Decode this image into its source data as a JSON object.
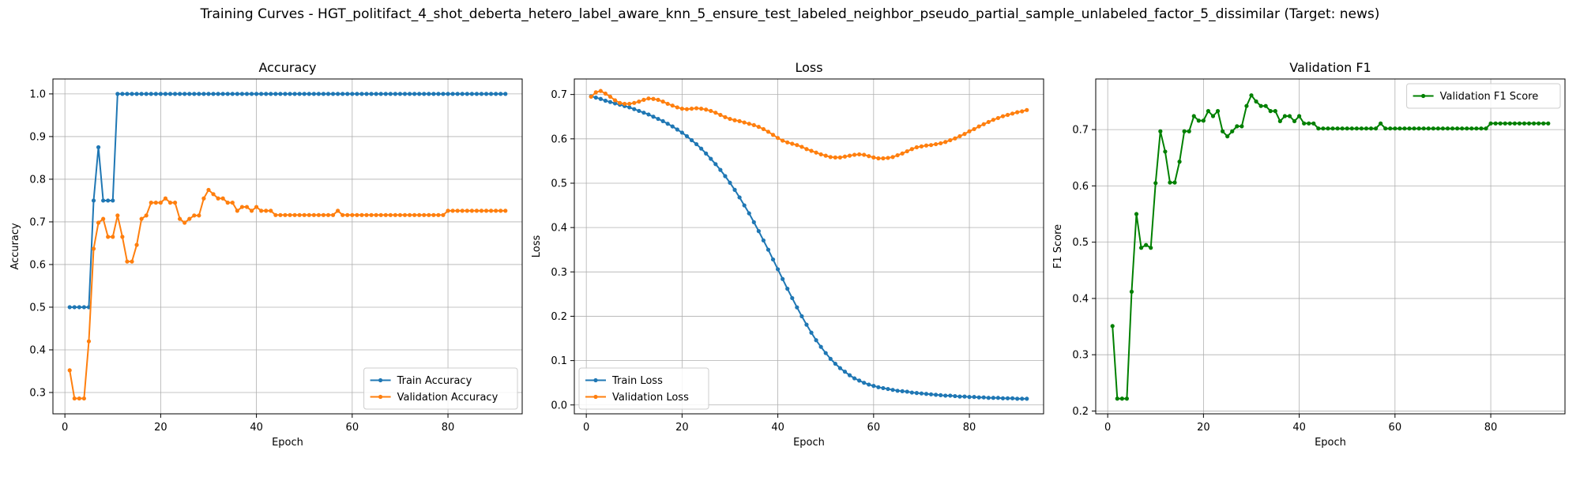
{
  "suptitle": "Training Curves - HGT_politifact_4_shot_deberta_hetero_label_aware_knn_5_ensure_test_labeled_neighbor_pseudo_partial_sample_unlabeled_factor_5_dissimilar (Target: news)",
  "chart_data": [
    {
      "type": "line",
      "title": "Accuracy",
      "xlabel": "Epoch",
      "ylabel": "Accuracy",
      "xlim": [
        -2.5,
        95.5
      ],
      "ylim": [
        0.25,
        1.035
      ],
      "xticks": [
        0,
        20,
        40,
        60,
        80
      ],
      "yticks": [
        0.3,
        0.4,
        0.5,
        0.6,
        0.7,
        0.8,
        0.9,
        1.0
      ],
      "ytick_labels": [
        "0.3",
        "0.4",
        "0.5",
        "0.6",
        "0.7",
        "0.8",
        "0.9",
        "1.0"
      ],
      "grid": true,
      "legend": "lower-right",
      "series": [
        {
          "name": "Train Accuracy",
          "color": "#1f77b4",
          "x_start": 1,
          "values": [
            0.5,
            0.5,
            0.5,
            0.5,
            0.5,
            0.75,
            0.875,
            0.75,
            0.75,
            0.75,
            1.0,
            1.0,
            1.0,
            1.0,
            1.0,
            1.0,
            1.0,
            1.0,
            1.0,
            1.0,
            1.0,
            1.0,
            1.0,
            1.0,
            1.0,
            1.0,
            1.0,
            1.0,
            1.0,
            1.0,
            1.0,
            1.0,
            1.0,
            1.0,
            1.0,
            1.0,
            1.0,
            1.0,
            1.0,
            1.0,
            1.0,
            1.0,
            1.0,
            1.0,
            1.0,
            1.0,
            1.0,
            1.0,
            1.0,
            1.0,
            1.0,
            1.0,
            1.0,
            1.0,
            1.0,
            1.0,
            1.0,
            1.0,
            1.0,
            1.0,
            1.0,
            1.0,
            1.0,
            1.0,
            1.0,
            1.0,
            1.0,
            1.0,
            1.0,
            1.0,
            1.0,
            1.0,
            1.0,
            1.0,
            1.0,
            1.0,
            1.0,
            1.0,
            1.0,
            1.0,
            1.0,
            1.0,
            1.0,
            1.0,
            1.0,
            1.0,
            1.0,
            1.0,
            1.0,
            1.0,
            1.0,
            1.0
          ]
        },
        {
          "name": "Validation Accuracy",
          "color": "#ff7f0e",
          "x_start": 1,
          "values": [
            0.352,
            0.286,
            0.286,
            0.286,
            0.42,
            0.637,
            0.698,
            0.707,
            0.665,
            0.665,
            0.715,
            0.665,
            0.607,
            0.607,
            0.646,
            0.707,
            0.715,
            0.745,
            0.745,
            0.745,
            0.755,
            0.745,
            0.745,
            0.707,
            0.698,
            0.707,
            0.715,
            0.715,
            0.755,
            0.775,
            0.765,
            0.755,
            0.755,
            0.745,
            0.745,
            0.726,
            0.735,
            0.735,
            0.726,
            0.735,
            0.726,
            0.726,
            0.726,
            0.716,
            0.716,
            0.716,
            0.716,
            0.716,
            0.716,
            0.716,
            0.716,
            0.716,
            0.716,
            0.716,
            0.716,
            0.716,
            0.726,
            0.716,
            0.716,
            0.716,
            0.716,
            0.716,
            0.716,
            0.716,
            0.716,
            0.716,
            0.716,
            0.716,
            0.716,
            0.716,
            0.716,
            0.716,
            0.716,
            0.716,
            0.716,
            0.716,
            0.716,
            0.716,
            0.716,
            0.726,
            0.726,
            0.726,
            0.726,
            0.726,
            0.726,
            0.726,
            0.726,
            0.726,
            0.726,
            0.726,
            0.726,
            0.726
          ]
        }
      ]
    },
    {
      "type": "line",
      "title": "Loss",
      "xlabel": "Epoch",
      "ylabel": "Loss",
      "xlim": [
        -2.5,
        95.5
      ],
      "ylim": [
        -0.02,
        0.735
      ],
      "xticks": [
        0,
        20,
        40,
        60,
        80
      ],
      "yticks": [
        0.0,
        0.1,
        0.2,
        0.3,
        0.4,
        0.5,
        0.6,
        0.7
      ],
      "ytick_labels": [
        "0.0",
        "0.1",
        "0.2",
        "0.3",
        "0.4",
        "0.5",
        "0.6",
        "0.7"
      ],
      "grid": true,
      "legend": "lower-left",
      "series": [
        {
          "name": "Train Loss",
          "color": "#1f77b4",
          "x_start": 1,
          "values": [
            0.696,
            0.693,
            0.69,
            0.686,
            0.683,
            0.68,
            0.677,
            0.674,
            0.671,
            0.667,
            0.663,
            0.659,
            0.655,
            0.65,
            0.645,
            0.64,
            0.634,
            0.628,
            0.621,
            0.614,
            0.606,
            0.597,
            0.588,
            0.578,
            0.567,
            0.555,
            0.543,
            0.53,
            0.516,
            0.501,
            0.485,
            0.468,
            0.45,
            0.432,
            0.412,
            0.392,
            0.371,
            0.35,
            0.328,
            0.306,
            0.284,
            0.262,
            0.241,
            0.22,
            0.2,
            0.181,
            0.163,
            0.146,
            0.131,
            0.117,
            0.104,
            0.093,
            0.083,
            0.075,
            0.067,
            0.06,
            0.055,
            0.05,
            0.046,
            0.043,
            0.04,
            0.038,
            0.036,
            0.034,
            0.032,
            0.031,
            0.03,
            0.028,
            0.027,
            0.026,
            0.025,
            0.024,
            0.023,
            0.022,
            0.021,
            0.021,
            0.02,
            0.019,
            0.019,
            0.018,
            0.018,
            0.017,
            0.017,
            0.016,
            0.016,
            0.016,
            0.015,
            0.015,
            0.015,
            0.014,
            0.014,
            0.014
          ]
        },
        {
          "name": "Validation Loss",
          "color": "#ff7f0e",
          "x_start": 1,
          "values": [
            0.695,
            0.705,
            0.708,
            0.702,
            0.695,
            0.687,
            0.681,
            0.679,
            0.679,
            0.681,
            0.684,
            0.688,
            0.691,
            0.69,
            0.688,
            0.684,
            0.679,
            0.675,
            0.671,
            0.668,
            0.667,
            0.668,
            0.669,
            0.668,
            0.666,
            0.663,
            0.659,
            0.654,
            0.649,
            0.645,
            0.642,
            0.64,
            0.637,
            0.634,
            0.631,
            0.627,
            0.622,
            0.616,
            0.609,
            0.602,
            0.596,
            0.592,
            0.589,
            0.586,
            0.582,
            0.577,
            0.573,
            0.569,
            0.565,
            0.562,
            0.559,
            0.558,
            0.558,
            0.56,
            0.562,
            0.564,
            0.565,
            0.564,
            0.561,
            0.558,
            0.556,
            0.556,
            0.557,
            0.559,
            0.563,
            0.567,
            0.572,
            0.577,
            0.581,
            0.583,
            0.585,
            0.586,
            0.588,
            0.59,
            0.593,
            0.597,
            0.601,
            0.606,
            0.611,
            0.617,
            0.622,
            0.628,
            0.633,
            0.638,
            0.643,
            0.647,
            0.651,
            0.654,
            0.657,
            0.66,
            0.662,
            0.665
          ]
        }
      ]
    },
    {
      "type": "line",
      "title": "Validation F1",
      "xlabel": "Epoch",
      "ylabel": "F1 Score",
      "xlim": [
        -2.5,
        95.5
      ],
      "ylim": [
        0.195,
        0.79
      ],
      "xticks": [
        0,
        20,
        40,
        60,
        80
      ],
      "yticks": [
        0.2,
        0.3,
        0.4,
        0.5,
        0.6,
        0.7
      ],
      "ytick_labels": [
        "0.2",
        "0.3",
        "0.4",
        "0.5",
        "0.6",
        "0.7"
      ],
      "grid": true,
      "legend": "upper-right",
      "series": [
        {
          "name": "Validation F1 Score",
          "color": "#008000",
          "x_start": 1,
          "values": [
            0.351,
            0.222,
            0.222,
            0.222,
            0.412,
            0.55,
            0.49,
            0.495,
            0.49,
            0.605,
            0.697,
            0.661,
            0.606,
            0.606,
            0.643,
            0.697,
            0.697,
            0.724,
            0.716,
            0.716,
            0.733,
            0.724,
            0.733,
            0.697,
            0.688,
            0.697,
            0.706,
            0.706,
            0.742,
            0.761,
            0.75,
            0.742,
            0.742,
            0.733,
            0.733,
            0.715,
            0.724,
            0.724,
            0.715,
            0.724,
            0.711,
            0.711,
            0.711,
            0.702,
            0.702,
            0.702,
            0.702,
            0.702,
            0.702,
            0.702,
            0.702,
            0.702,
            0.702,
            0.702,
            0.702,
            0.702,
            0.711,
            0.702,
            0.702,
            0.702,
            0.702,
            0.702,
            0.702,
            0.702,
            0.702,
            0.702,
            0.702,
            0.702,
            0.702,
            0.702,
            0.702,
            0.702,
            0.702,
            0.702,
            0.702,
            0.702,
            0.702,
            0.702,
            0.702,
            0.711,
            0.711,
            0.711,
            0.711,
            0.711,
            0.711,
            0.711,
            0.711,
            0.711,
            0.711,
            0.711,
            0.711,
            0.711
          ]
        }
      ]
    }
  ]
}
